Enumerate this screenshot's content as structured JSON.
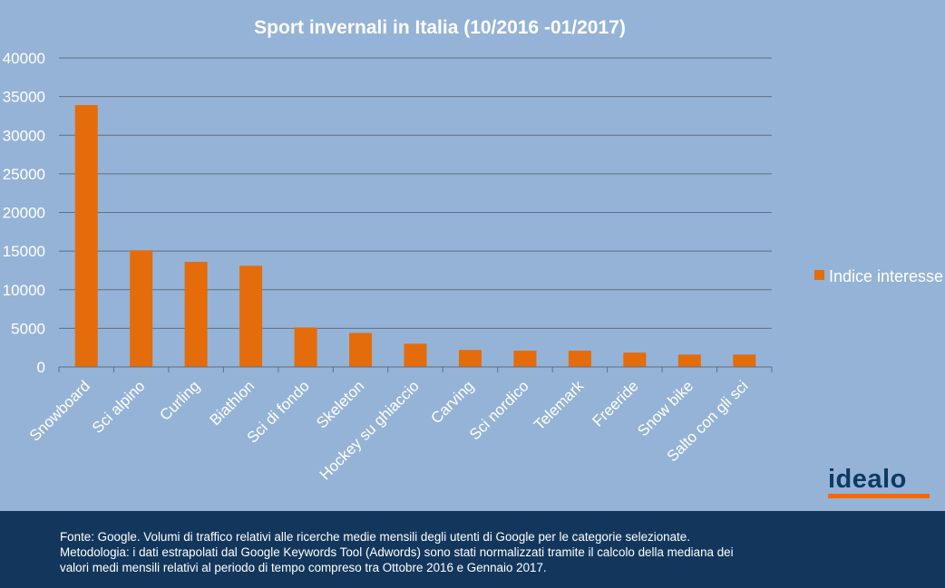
{
  "chart_data": {
    "type": "bar",
    "title": "Sport invernali in Italia (10/2016 -01/2017)",
    "categories": [
      "Snowboard",
      "Sci alpino",
      "Curling",
      "Biathlon",
      "Sci di fondo",
      "Skeleton",
      "Hockey su ghiaccio",
      "Carving",
      "Sci nordico",
      "Telemark",
      "Freeride",
      "Snow bike",
      "Salto con gli sci"
    ],
    "series": [
      {
        "name": "Indice interesse",
        "values": [
          33900,
          15100,
          13600,
          13100,
          5100,
          4400,
          3000,
          2200,
          2100,
          2100,
          1850,
          1600,
          1600
        ],
        "color": "#e46c0a"
      }
    ],
    "ylim": [
      0,
      40000
    ],
    "yticks": [
      0,
      5000,
      10000,
      15000,
      20000,
      25000,
      30000,
      35000,
      40000
    ],
    "grid": true,
    "legend_position": "right"
  },
  "logo": {
    "text": "idealo",
    "color": "#0f3a63",
    "accent": "#ff6600"
  },
  "footer": {
    "lines": [
      "Fonte: Google. Volumi di traffico relativi alle ricerche medie mensili degli utenti di Google per le categorie selezionate.",
      "Metodologia: i dati estrapolati dal Google Keywords Tool (Adwords)  sono stati normalizzati tramite il calcolo della mediana dei",
      "valori medi mensili relativi al periodo di tempo compreso tra Ottobre 2016 e Gennaio 2017."
    ]
  },
  "colors": {
    "background": "#95b3d7",
    "bar": "#e46c0a",
    "footer": "#13375c",
    "gridline": "#5f6f80"
  }
}
